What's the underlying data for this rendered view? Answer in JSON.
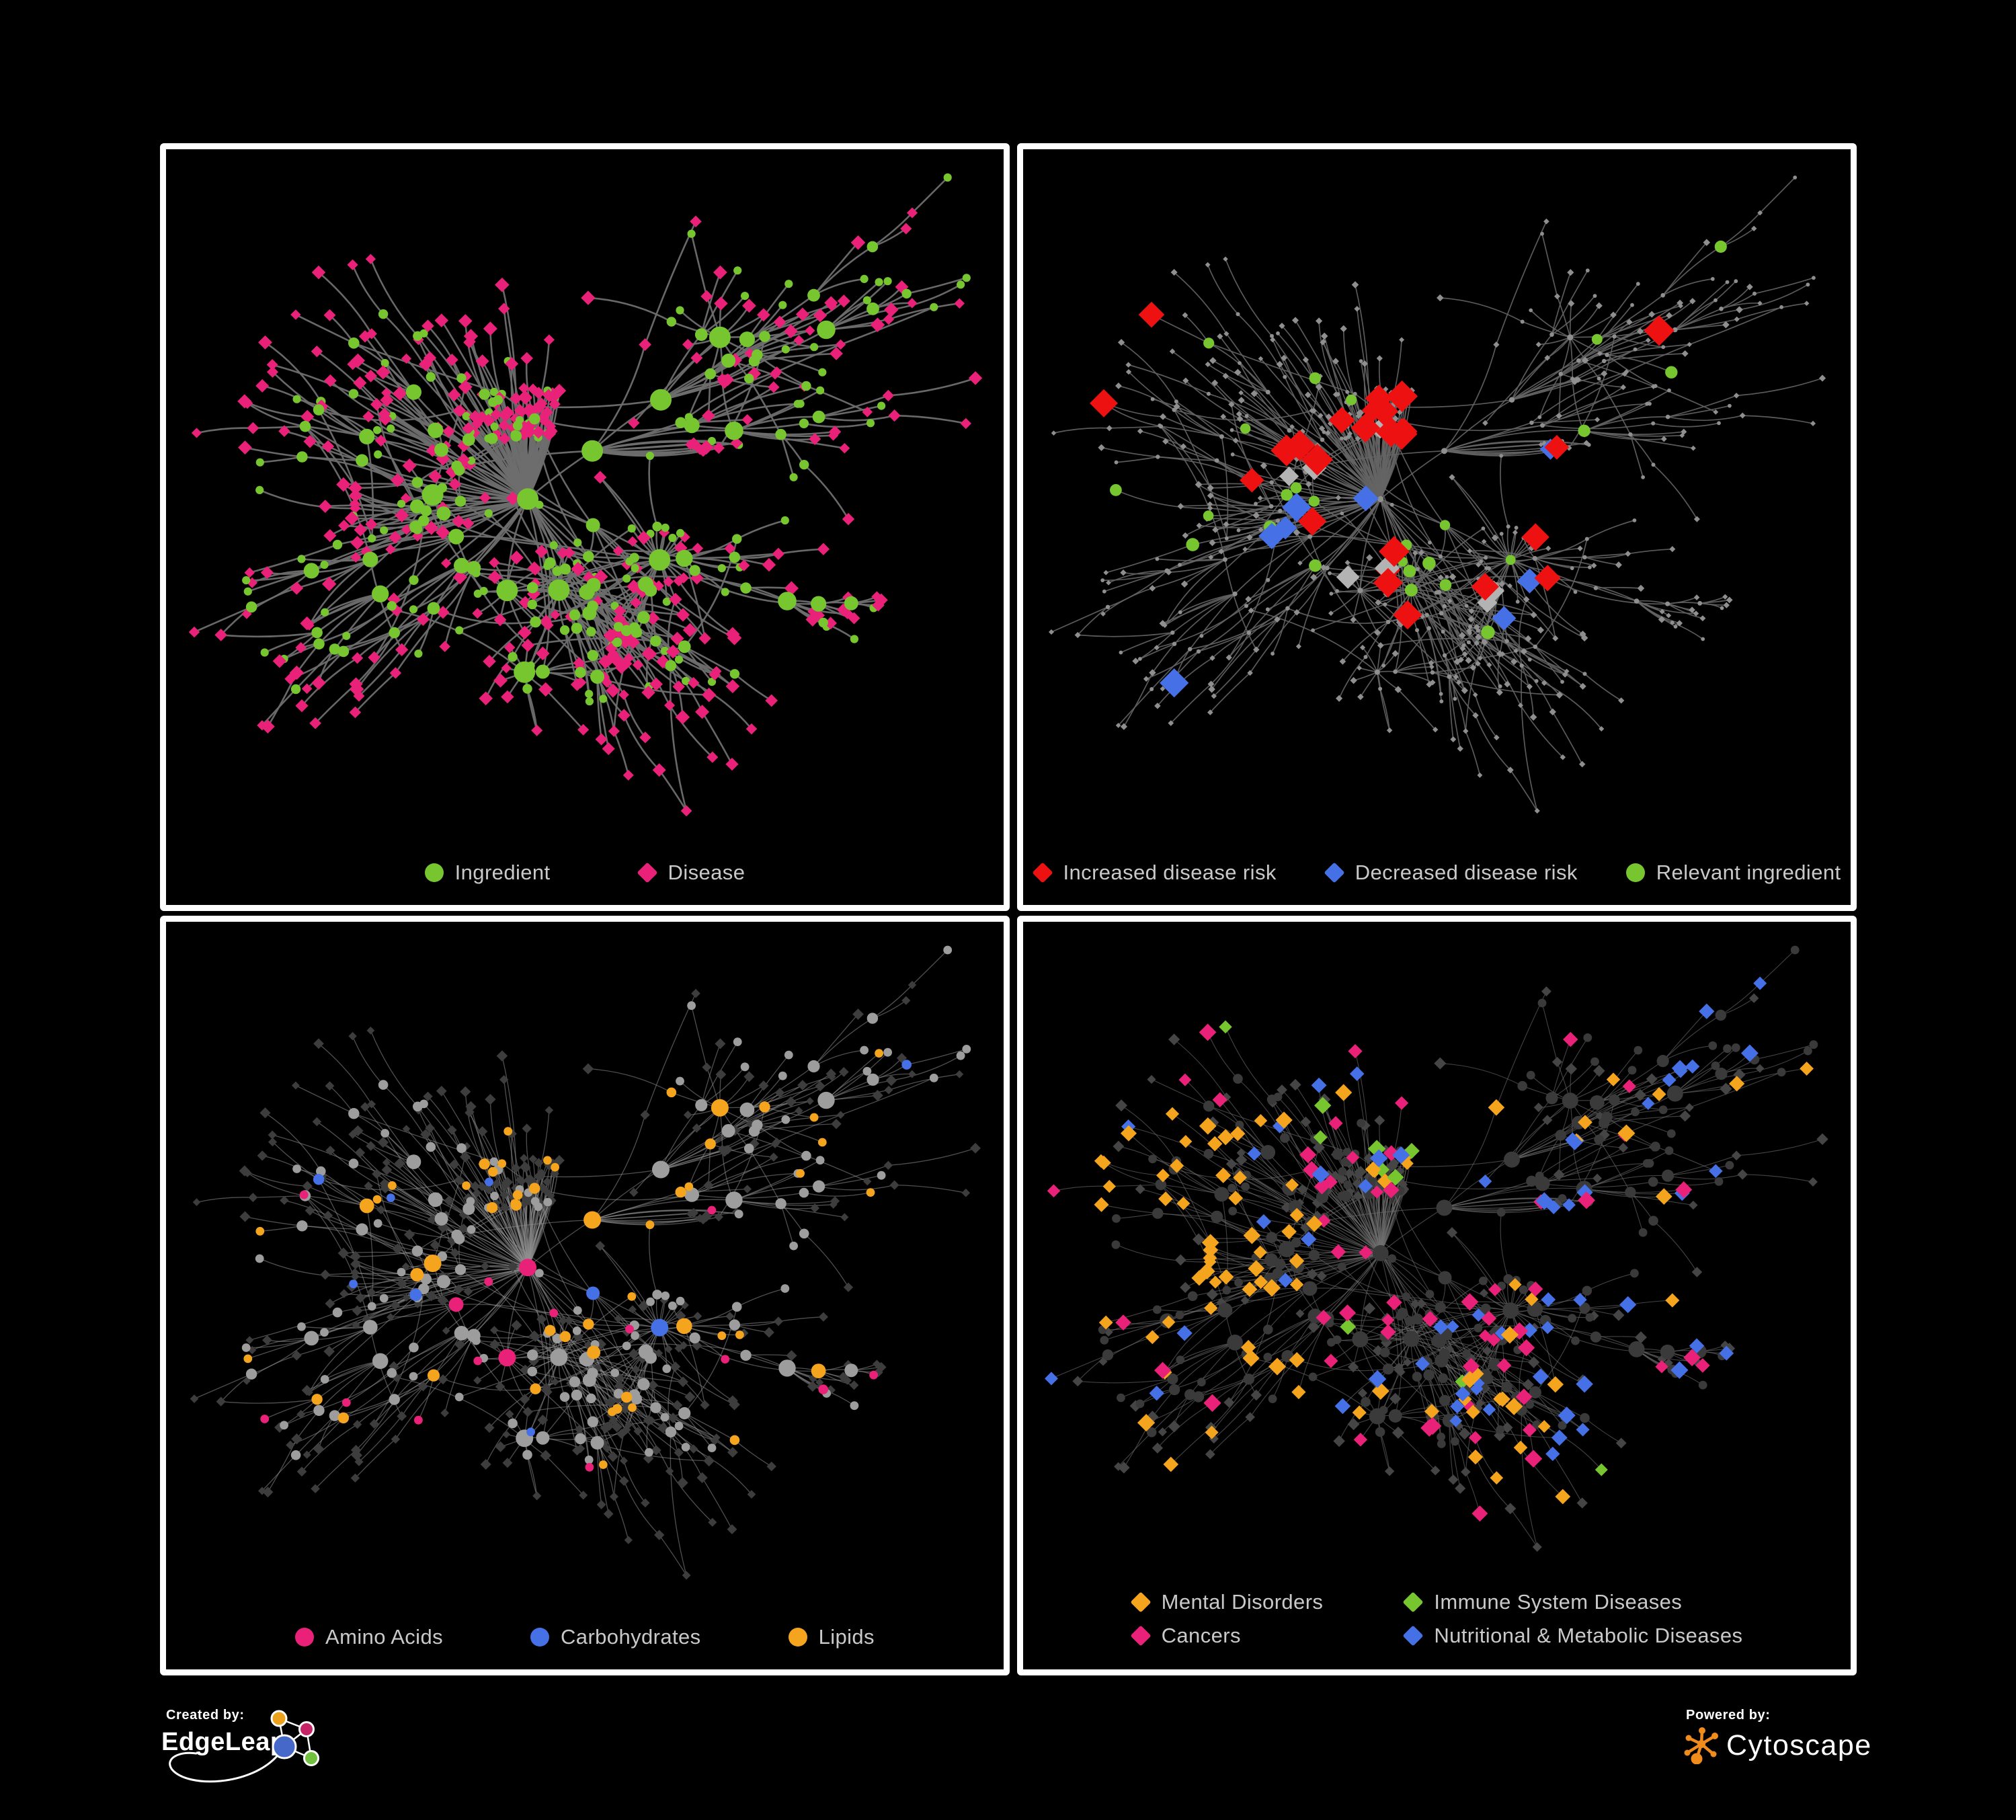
{
  "colors": {
    "background": "#000000",
    "panel_border": "#ffffff",
    "legend_text": "#c9c9c9",
    "green": "#77c52f",
    "pink": "#ea2178",
    "red": "#ee1111",
    "blue": "#4570e6",
    "orange": "#f5a41d",
    "grey_highlight": "#b3b3b3",
    "base_grey": "#8f8f8f",
    "ingredient_grey": "#9d9d9d",
    "disease_dark": "#3d3d3d",
    "dark_circle": "#3a3a3a",
    "dark_diamond": "#454545"
  },
  "network": {
    "seed": 20,
    "nodes": 620,
    "attach": 0.5,
    "bias": 1.18,
    "step0": 140,
    "falloff": 0.78,
    "stepMin": 24,
    "extraEdgeFraction": 0.18,
    "linkDist": 230,
    "ingredientMinDegree": 3,
    "ingredientLeafFraction": 0.25
  },
  "panels": [
    {
      "id": "ingredient-disease",
      "legend": {
        "layout": "row",
        "items": [
          {
            "label": "Ingredient",
            "shape": "circle",
            "color": "green"
          },
          {
            "label": "Disease",
            "shape": "diamond",
            "color": "pink"
          }
        ]
      },
      "style": {
        "edge": {
          "color": "#6e6e6e",
          "width": 2.6,
          "opacity": 0.95
        },
        "ingredient": {
          "color": "green",
          "rBase": 5,
          "rPerDegree": 1.1,
          "rMax": 16
        },
        "disease": {
          "color": "pink",
          "size": 6.5
        },
        "highlights": []
      }
    },
    {
      "id": "disease-risk",
      "legend": {
        "layout": "row tight",
        "items": [
          {
            "label": "Increased disease risk",
            "shape": "diamond",
            "color": "red"
          },
          {
            "label": "Decreased disease risk",
            "shape": "diamond",
            "color": "blue"
          },
          {
            "label": "Relevant ingredient",
            "shape": "circle",
            "color": "green"
          }
        ]
      },
      "style": {
        "edge": {
          "color": "#646464",
          "width": 1.7,
          "opacity": 0.9
        },
        "ingredient": {
          "color": "base_grey",
          "rBase": 2.8,
          "rPerDegree": 0.12,
          "rMax": 4.5
        },
        "disease": {
          "color": "base_grey",
          "size": 3.2
        },
        "highlights": [
          {
            "target": "disease",
            "color": "red",
            "size": 14,
            "count": 26,
            "region": [
              0.28,
              0.66,
              0.36,
              0.64
            ],
            "scatter": 0.12
          },
          {
            "target": "disease",
            "color": "blue",
            "size": 13,
            "count": 8,
            "region": [
              0.18,
              0.34,
              0.4,
              0.56
            ],
            "scatter": 0.25
          },
          {
            "target": "disease",
            "color": "grey_highlight",
            "size": 12,
            "count": 7,
            "region": [
              0.2,
              0.6,
              0.38,
              0.66
            ],
            "scatter": 0.2
          },
          {
            "target": "ingredient",
            "color": "green",
            "size": 8.5,
            "count": 26,
            "region": [
              0.2,
              0.62,
              0.33,
              0.64
            ],
            "scatter": 0.2
          }
        ]
      }
    },
    {
      "id": "nutrient-classes",
      "legend": {
        "layout": "row",
        "items": [
          {
            "label": "Amino Acids",
            "shape": "circle",
            "color": "pink"
          },
          {
            "label": "Carbohydrates",
            "shape": "circle",
            "color": "blue"
          },
          {
            "label": "Lipids",
            "shape": "circle",
            "color": "orange"
          }
        ]
      },
      "style": {
        "edge": {
          "color": "#8f8f8f",
          "width": 1.3,
          "opacity": 0.55
        },
        "ingredient": {
          "color": "ingredient_grey",
          "rBase": 5.5,
          "rPerDegree": 0.9,
          "rMax": 13
        },
        "disease": {
          "color": "disease_dark",
          "size": 5
        },
        "highlights": [
          {
            "target": "ingredient",
            "color": "orange",
            "keepSize": true,
            "count": 52,
            "region": [
              0.36,
              0.62,
              0.1,
              0.45
            ],
            "scatter": 0.27
          },
          {
            "target": "ingredient",
            "color": "blue",
            "keepSize": true,
            "count": 9,
            "region": [
              0.42,
              0.58,
              0.26,
              0.45
            ],
            "scatter": 0.35
          },
          {
            "target": "ingredient",
            "color": "pink",
            "keepSize": true,
            "count": 16,
            "region": [
              0.08,
              0.92,
              0.5,
              0.95
            ],
            "scatter": 0.3
          }
        ]
      }
    },
    {
      "id": "disease-classes",
      "legend": {
        "layout": "grid",
        "items": [
          {
            "label": "Mental Disorders",
            "shape": "diamond",
            "color": "orange"
          },
          {
            "label": "Immune System Diseases",
            "shape": "diamond",
            "color": "green"
          },
          {
            "label": "Cancers",
            "shape": "diamond",
            "color": "pink"
          },
          {
            "label": "Nutritional & Metabolic Diseases",
            "shape": "diamond",
            "color": "blue"
          }
        ]
      },
      "style": {
        "edge": {
          "color": "#6f6f6f",
          "width": 1.1,
          "opacity": 0.6
        },
        "ingredient": {
          "color": "dark_circle",
          "rBase": 5.5,
          "rPerDegree": 0.9,
          "rMax": 12
        },
        "disease": {
          "color": "dark_diamond",
          "size": 5.5
        },
        "highlights": [
          {
            "target": "disease",
            "color": "orange",
            "size": 7.8,
            "count": 88,
            "region": [
              0.06,
              0.34,
              0.3,
              0.72
            ],
            "scatter": 0.1
          },
          {
            "target": "disease",
            "color": "pink",
            "size": 7.8,
            "count": 56,
            "region": [
              0.36,
              0.62,
              0.42,
              0.68
            ],
            "scatter": 0.22
          },
          {
            "target": "disease",
            "color": "blue",
            "size": 7.8,
            "count": 62,
            "region": [
              0.5,
              1,
              0,
              0.85
            ],
            "scatter": 0.3
          },
          {
            "target": "disease",
            "color": "green",
            "size": 7.8,
            "count": 10,
            "region": [
              0,
              1,
              0,
              1
            ],
            "scatter": 1
          }
        ]
      }
    }
  ],
  "footer": {
    "created_by_label": "Created by:",
    "created_by_brand": "EdgeLeap",
    "powered_by_label": "Powered by:",
    "powered_by_brand": "Cytoscape"
  }
}
